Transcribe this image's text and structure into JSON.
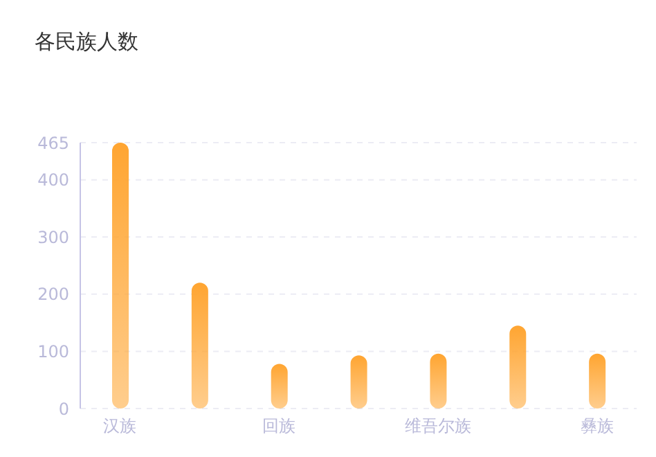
{
  "chart_data": {
    "type": "bar",
    "title": "各民族人数",
    "categories": [
      "汉族",
      null,
      "回族",
      null,
      "维吾尔族",
      null,
      "彝族"
    ],
    "values": [
      465,
      220,
      78,
      93,
      96,
      145,
      96
    ],
    "color": "#ffa531",
    "ylim": [
      0,
      465
    ],
    "yticks": [
      0,
      100,
      200,
      300,
      400,
      465
    ],
    "grid": "y"
  }
}
